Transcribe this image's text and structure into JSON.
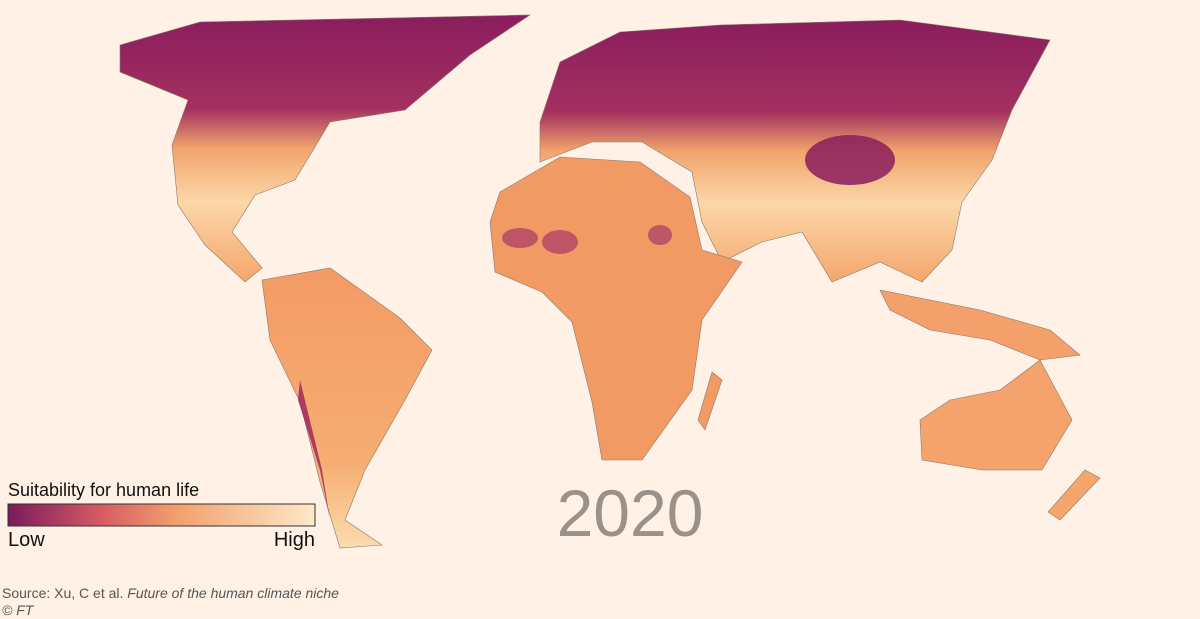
{
  "legend": {
    "title": "Suitability for human life",
    "low": "Low",
    "high": "High"
  },
  "year": "2020",
  "source": {
    "prefix": "Source: Xu, C et al.",
    "title": "Future of the human climate niche"
  },
  "copyright": "© FT"
}
